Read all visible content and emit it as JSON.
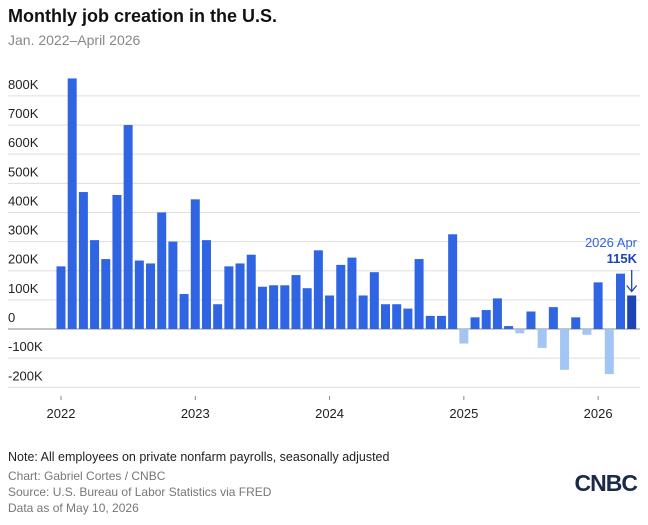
{
  "chart_data": {
    "type": "bar",
    "title": "Monthly job creation in the U.S.",
    "subtitle": "Jan. 2022–April 2026",
    "categories": [
      "2022",
      null,
      null,
      null,
      null,
      null,
      null,
      null,
      null,
      null,
      null,
      null,
      "2023",
      null,
      null,
      null,
      null,
      null,
      null,
      null,
      null,
      null,
      null,
      null,
      "2024",
      null,
      null,
      null,
      null,
      null,
      null,
      null,
      null,
      null,
      null,
      null,
      "2025",
      null,
      null,
      null,
      null,
      null,
      null,
      null,
      null,
      null,
      null,
      null,
      "2026",
      null,
      null,
      null
    ],
    "values": [
      215,
      860,
      470,
      305,
      240,
      460,
      700,
      235,
      225,
      400,
      300,
      120,
      445,
      305,
      85,
      215,
      225,
      255,
      145,
      150,
      150,
      185,
      140,
      270,
      115,
      220,
      245,
      115,
      195,
      85,
      85,
      70,
      240,
      45,
      45,
      325,
      -50,
      40,
      65,
      105,
      10,
      -15,
      60,
      -65,
      75,
      -140,
      40,
      -20,
      160,
      -155,
      190,
      115
    ],
    "color": "#2f64e2",
    "negative_color": "#a3c5f5",
    "highlight_color": "#1d44b5",
    "ylim": [
      -230,
      880
    ],
    "yticks": [
      {
        "value": -200,
        "label": "-200K"
      },
      {
        "value": -100,
        "label": "-100K"
      },
      0,
      {
        "value": 100,
        "label": "100K"
      },
      {
        "value": 200,
        "label": "200K"
      },
      {
        "value": 300,
        "label": "300K"
      },
      {
        "value": 400,
        "label": "400K"
      },
      {
        "value": 500,
        "label": "500K"
      },
      {
        "value": 600,
        "label": "600K"
      },
      {
        "value": 700,
        "label": "700K"
      },
      {
        "value": 800,
        "label": "800K"
      }
    ],
    "grid": true,
    "annotation": {
      "label": "2026 Apr",
      "value_label": "115K"
    },
    "note": "Note: All employees on private nonfarm payrolls, seasonally adjusted",
    "credit": "Chart: Gabriel Cortes / CNBC",
    "source": "Source: U.S. Bureau of Labor Statistics via FRED",
    "date": "Data as of May 10, 2026",
    "logo": "CNBC"
  }
}
